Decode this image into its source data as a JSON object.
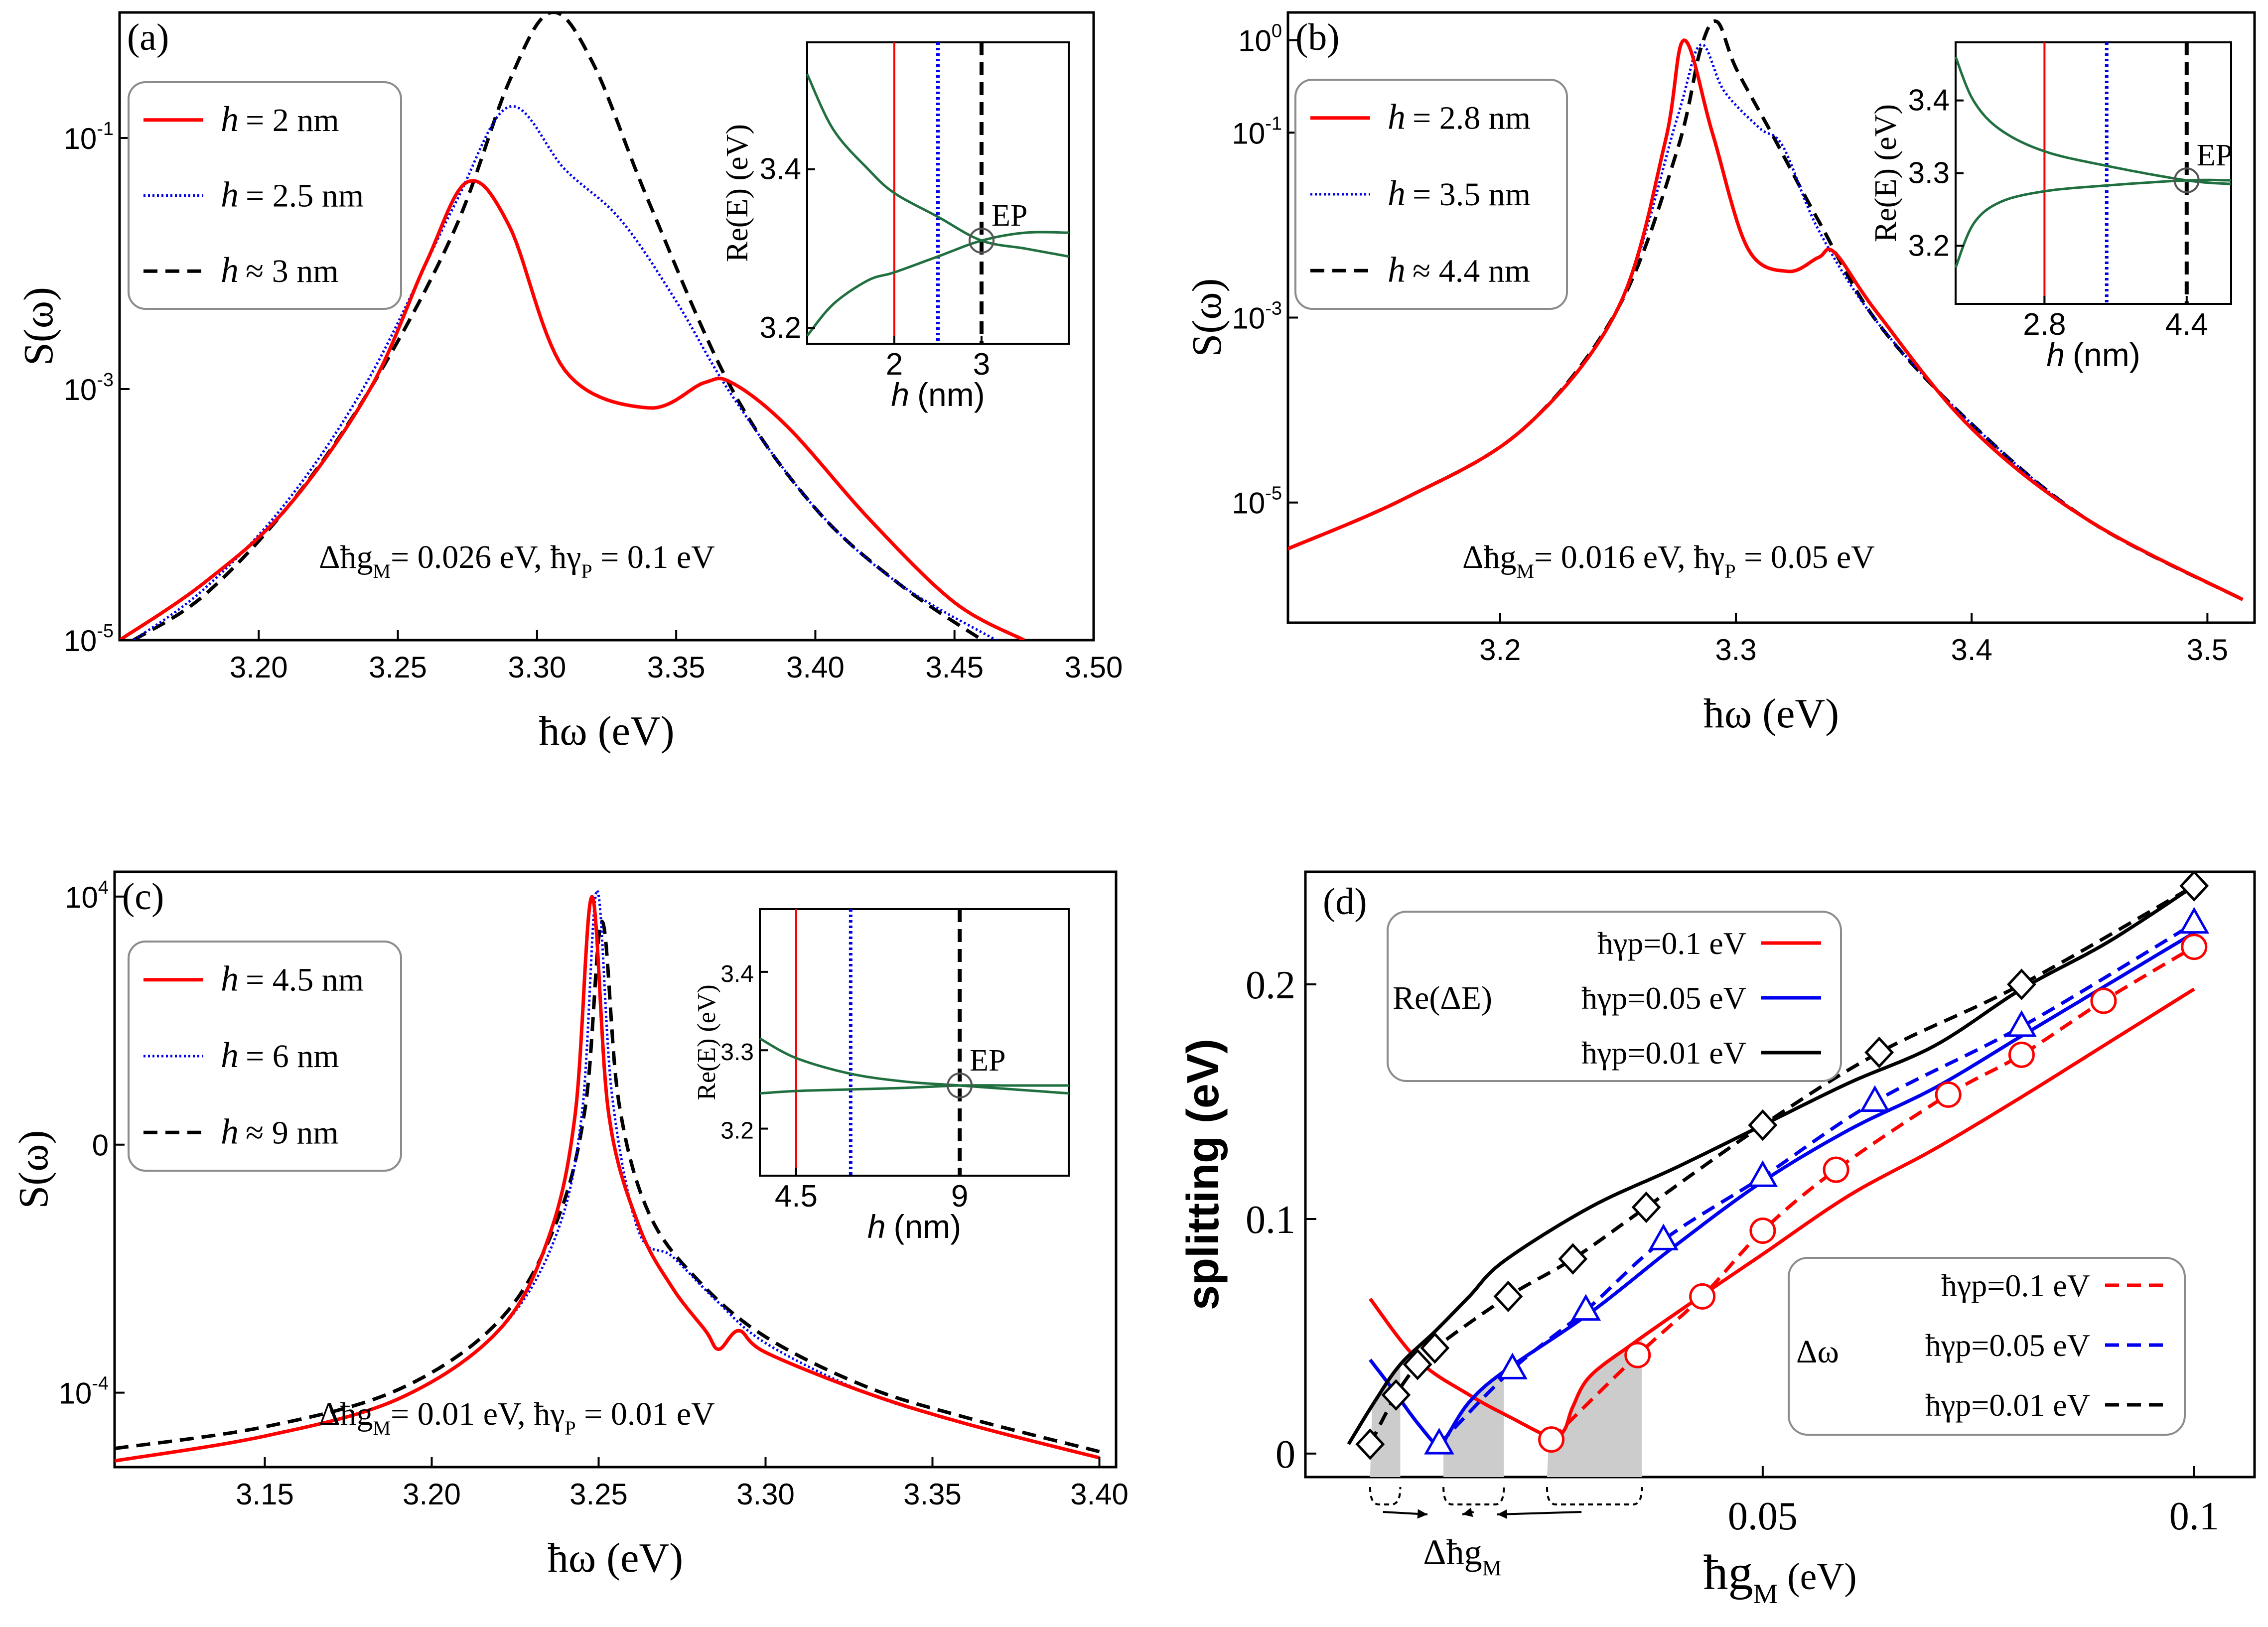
{
  "colors": {
    "red": "#ff0000",
    "blue": "#0000ee",
    "black": "#000000",
    "green": "#1f6f3f",
    "shade": "#cccccc"
  },
  "chart_data": [
    {
      "type": "line",
      "panel": "(a)",
      "ylabel": "S(ω)",
      "xlabel": "ħω (eV)",
      "yscale": "log",
      "xlim": [
        3.15,
        3.5
      ],
      "ylim_log10": [
        -5,
        0.0
      ],
      "xticks": [
        "3.20",
        "3.25",
        "3.30",
        "3.35",
        "3.40",
        "3.45",
        "3.50"
      ],
      "yticks": [
        {
          "base": "10",
          "exp": "-1"
        },
        {
          "base": "10",
          "exp": "-3"
        },
        {
          "base": "10",
          "exp": "-5"
        }
      ],
      "annotation": {
        "a": "Δħg",
        "a_sub": "M",
        "b": "= 0.026 eV,  ħγ",
        "b_sub": "P",
        "c": " = 0.1 eV"
      },
      "legend": [
        {
          "name": "h",
          "rel": "= 2 nm",
          "style": "solid",
          "color": "#ff0000"
        },
        {
          "name": "h",
          "rel": "= 2.5 nm",
          "style": "dotted",
          "color": "#0000ee"
        },
        {
          "name": "h",
          "rel": "≈ 3 nm",
          "style": "dashed",
          "color": "#000000"
        }
      ],
      "series": [
        {
          "name": "h = 2 nm",
          "x": [
            3.15,
            3.18,
            3.21,
            3.24,
            3.26,
            3.275,
            3.29,
            3.31,
            3.34,
            3.36,
            3.37,
            3.39,
            3.42,
            3.45,
            3.475
          ],
          "log10y": [
            -5.0,
            -4.55,
            -3.95,
            -3.0,
            -2.0,
            -1.35,
            -1.7,
            -2.85,
            -3.15,
            -2.95,
            -2.95,
            -3.3,
            -4.05,
            -4.7,
            -5.0
          ]
        },
        {
          "name": "h = 2.5 nm",
          "x": [
            3.155,
            3.18,
            3.21,
            3.24,
            3.27,
            3.29,
            3.31,
            3.33,
            3.35,
            3.37,
            3.4,
            3.43,
            3.465
          ],
          "log10y": [
            -5.0,
            -4.6,
            -3.9,
            -2.9,
            -1.55,
            -0.75,
            -1.25,
            -1.65,
            -2.3,
            -3.05,
            -3.95,
            -4.55,
            -5.0
          ]
        },
        {
          "name": "h ≈ 3 nm",
          "x": [
            3.155,
            3.18,
            3.21,
            3.24,
            3.27,
            3.29,
            3.305,
            3.32,
            3.34,
            3.37,
            3.4,
            3.43,
            3.46
          ],
          "log10y": [
            -5.0,
            -4.65,
            -3.95,
            -3.0,
            -1.75,
            -0.55,
            0.0,
            -0.4,
            -1.5,
            -3.0,
            -3.95,
            -4.55,
            -5.0
          ]
        }
      ],
      "inset": {
        "xlabel_name": "h",
        "xlabel_unit": "(nm)",
        "ylabel": "Re(E) (eV)",
        "xlim": [
          1.0,
          4.0
        ],
        "ylim": [
          3.18,
          3.56
        ],
        "xticks": [
          "2",
          "3"
        ],
        "yticks": [
          "3.2",
          "3.4"
        ],
        "ep_label": "EP",
        "ep": [
          3.0,
          3.31
        ],
        "vlines": [
          2.0,
          2.5,
          3.0
        ],
        "branches": [
          {
            "x": [
              1.0,
              1.3,
              1.7,
              2.0,
              2.5,
              3.0,
              3.5,
              4.0
            ],
            "y": [
              3.52,
              3.45,
              3.4,
              3.37,
              3.34,
              3.31,
              3.3,
              3.29
            ]
          },
          {
            "x": [
              1.0,
              1.3,
              1.7,
              2.0,
              2.5,
              3.0,
              3.5,
              4.0
            ],
            "y": [
              3.19,
              3.23,
              3.26,
              3.27,
              3.29,
              3.31,
              3.32,
              3.32
            ]
          }
        ]
      }
    },
    {
      "type": "line",
      "panel": "(b)",
      "ylabel": "S(ω)",
      "xlabel": "ħω (eV)",
      "yscale": "log",
      "xlim": [
        3.11,
        3.52
      ],
      "ylim_log10": [
        -6.3,
        0.3
      ],
      "xticks": [
        "3.2",
        "3.3",
        "3.4",
        "3.5"
      ],
      "yticks": [
        {
          "base": "10",
          "exp": "0"
        },
        {
          "base": "10",
          "exp": "-1"
        },
        {
          "base": "10",
          "exp": "-3"
        },
        {
          "base": "10",
          "exp": "-5"
        }
      ],
      "annotation": {
        "a": "Δħg",
        "a_sub": "M",
        "b": "= 0.016 eV,  ħγ",
        "b_sub": "P",
        "c": " = 0.05 eV"
      },
      "legend": [
        {
          "name": "h",
          "rel": "= 2.8 nm",
          "style": "solid",
          "color": "#ff0000"
        },
        {
          "name": "h",
          "rel": "= 3.5 nm",
          "style": "dotted",
          "color": "#0000ee"
        },
        {
          "name": "h",
          "rel": "≈ 4.4 nm",
          "style": "dashed",
          "color": "#000000"
        }
      ],
      "series": [
        {
          "name": "h = 2.8 nm",
          "x": [
            3.11,
            3.16,
            3.21,
            3.25,
            3.27,
            3.278,
            3.29,
            3.305,
            3.322,
            3.335,
            3.342,
            3.36,
            3.4,
            3.45,
            3.515
          ],
          "log10y": [
            -5.5,
            -4.95,
            -4.2,
            -2.9,
            -1.1,
            0.0,
            -1.0,
            -2.25,
            -2.5,
            -2.35,
            -2.3,
            -2.95,
            -4.2,
            -5.2,
            -6.05
          ]
        },
        {
          "name": "h = 3.5 nm",
          "x": [
            3.11,
            3.16,
            3.21,
            3.25,
            3.275,
            3.285,
            3.295,
            3.31,
            3.32,
            3.335,
            3.36,
            3.4,
            3.45,
            3.515
          ],
          "log10y": [
            -5.5,
            -4.95,
            -4.2,
            -2.9,
            -0.85,
            -0.05,
            -0.55,
            -0.95,
            -1.15,
            -2.05,
            -3.05,
            -4.15,
            -5.2,
            -6.05
          ]
        },
        {
          "name": "h ≈ 4.4 nm",
          "x": [
            3.11,
            3.16,
            3.21,
            3.25,
            3.275,
            3.285,
            3.292,
            3.3,
            3.315,
            3.335,
            3.36,
            3.4,
            3.45,
            3.515
          ],
          "log10y": [
            -5.5,
            -4.95,
            -4.2,
            -2.9,
            -1.2,
            -0.1,
            0.2,
            -0.3,
            -1.0,
            -1.95,
            -3.05,
            -4.15,
            -5.2,
            -6.05
          ]
        }
      ],
      "inset": {
        "xlabel_name": "h",
        "xlabel_unit": "(nm)",
        "ylabel": "Re(E) (eV)",
        "xlim": [
          1.8,
          4.9
        ],
        "ylim": [
          3.12,
          3.48
        ],
        "xticks": [
          "2.8",
          "4.4"
        ],
        "yticks": [
          "3.2",
          "3.3",
          "3.4"
        ],
        "ep_label": "EP",
        "ep": [
          4.4,
          3.29
        ],
        "vlines": [
          2.8,
          3.5,
          4.4
        ],
        "branches": [
          {
            "x": [
              1.8,
              2.0,
              2.3,
              2.8,
              3.5,
              4.4,
              4.9
            ],
            "y": [
              3.46,
              3.4,
              3.36,
              3.33,
              3.31,
              3.29,
              3.285
            ]
          },
          {
            "x": [
              1.8,
              2.0,
              2.3,
              2.8,
              3.5,
              4.4,
              4.9
            ],
            "y": [
              3.17,
              3.23,
              3.26,
              3.275,
              3.283,
              3.29,
              3.29
            ]
          }
        ]
      }
    },
    {
      "type": "line",
      "panel": "(c)",
      "ylabel": "S(ω)",
      "xlabel": "ħω (eV)",
      "yscale": "log",
      "xlim": [
        3.105,
        3.405
      ],
      "ylim_log10": [
        -5.2,
        4.4
      ],
      "xticks": [
        "3.15",
        "3.20",
        "3.25",
        "3.30",
        "3.35",
        "3.40"
      ],
      "yticks": [
        {
          "base": "10",
          "exp": "4"
        },
        {
          "base": "0",
          "exp": ""
        },
        {
          "base": "10",
          "exp": "-4"
        }
      ],
      "annotation": {
        "a": "Δħg",
        "a_sub": "M",
        "b": "= 0.01 eV,  ħγ",
        "b_sub": "P",
        "c": " = 0.01 eV"
      },
      "legend": [
        {
          "name": "h",
          "rel": "= 4.5 nm",
          "style": "solid",
          "color": "#ff0000"
        },
        {
          "name": "h",
          "rel": "= 6 nm",
          "style": "dotted",
          "color": "#0000ee"
        },
        {
          "name": "h",
          "rel": "≈ 9 nm",
          "style": "dashed",
          "color": "#000000"
        }
      ],
      "series": [
        {
          "name": "h = 4.5 nm",
          "x": [
            3.105,
            3.15,
            3.19,
            3.22,
            3.235,
            3.243,
            3.248,
            3.253,
            3.262,
            3.272,
            3.282,
            3.286,
            3.292,
            3.3,
            3.33,
            3.36,
            3.4
          ],
          "log10y": [
            -5.1,
            -4.7,
            -4.1,
            -3.0,
            -1.5,
            0.5,
            4.0,
            0.5,
            -1.3,
            -2.3,
            -3.0,
            -3.3,
            -3.0,
            -3.35,
            -4.0,
            -4.5,
            -5.05
          ]
        },
        {
          "name": "h = 6 nm",
          "x": [
            3.105,
            3.15,
            3.19,
            3.22,
            3.237,
            3.245,
            3.2495,
            3.254,
            3.262,
            3.272,
            3.285,
            3.3,
            3.33,
            3.36,
            3.4
          ],
          "log10y": [
            -5.1,
            -4.7,
            -4.1,
            -3.0,
            -1.5,
            0.5,
            4.1,
            0.8,
            -1.4,
            -1.8,
            -2.5,
            -3.2,
            -4.0,
            -4.5,
            -5.05
          ]
        },
        {
          "name": "h ≈ 9 nm",
          "x": [
            3.105,
            3.15,
            3.19,
            3.22,
            3.237,
            3.246,
            3.251,
            3.256,
            3.265,
            3.28,
            3.3,
            3.33,
            3.36,
            3.4
          ],
          "log10y": [
            -4.9,
            -4.55,
            -3.95,
            -2.85,
            -1.3,
            0.6,
            3.6,
            0.7,
            -1.1,
            -2.2,
            -3.1,
            -3.9,
            -4.4,
            -4.95
          ]
        }
      ],
      "inset": {
        "xlabel_name": "h",
        "xlabel_unit": "(nm)",
        "ylabel": "Re(E) (eV)",
        "xlim": [
          3.5,
          12.0
        ],
        "ylim": [
          3.14,
          3.48
        ],
        "xticks": [
          "4.5",
          "9"
        ],
        "yticks": [
          "3.2",
          "3.3",
          "3.4"
        ],
        "ep_label": "EP",
        "ep": [
          9.0,
          3.255
        ],
        "vlines": [
          4.5,
          6.0,
          9.0
        ],
        "branches": [
          {
            "x": [
              3.5,
              4.5,
              6.0,
              7.5,
              9.0,
              10.5,
              12.0
            ],
            "y": [
              3.315,
              3.29,
              3.27,
              3.26,
              3.255,
              3.25,
              3.245
            ]
          },
          {
            "x": [
              3.5,
              4.5,
              6.0,
              7.5,
              9.0,
              10.5,
              12.0
            ],
            "y": [
              3.245,
              3.248,
              3.25,
              3.252,
              3.255,
              3.255,
              3.255
            ]
          }
        ]
      }
    },
    {
      "type": "line",
      "panel": "(d)",
      "ylabel": "splitting (eV)",
      "xlabel_main": "ħg",
      "xlabel_sub": "M",
      "xlabel_unit": " (eV)",
      "xlim": [
        -0.003,
        0.107
      ],
      "ylim": [
        -0.01,
        0.248
      ],
      "xticks": [
        {
          "v": 0.05,
          "label": "0.05"
        },
        {
          "v": 0.1,
          "label": "0.1"
        }
      ],
      "yticks": [
        {
          "v": 0.0,
          "label": "0"
        },
        {
          "v": 0.1,
          "label": "0.1"
        },
        {
          "v": 0.2,
          "label": "0.2"
        }
      ],
      "legend_re": {
        "group": "Re(ΔE)",
        "items": [
          "ħγp=0.1 eV",
          "ħγp=0.05 eV",
          "ħγp=0.01 eV"
        ]
      },
      "legend_dw": {
        "group": "Δω",
        "items": [
          "ħγp=0.1 eV",
          "ħγp=0.05 eV",
          "ħγp=0.01 eV"
        ]
      },
      "delta_label": {
        "main": "Δħg",
        "sub": "M"
      },
      "shaded_intervals": [
        [
          0.0045,
          0.008
        ],
        [
          0.013,
          0.02
        ],
        [
          0.025,
          0.036
        ]
      ],
      "series": [
        {
          "name": "Re(ΔE) ħγp=0.1 eV",
          "style": "solid",
          "color": "#ff0000",
          "x": [
            0.0045,
            0.01,
            0.016,
            0.021,
            0.0255,
            0.027,
            0.028,
            0.03,
            0.035,
            0.042,
            0.05,
            0.06,
            0.07,
            0.08,
            0.09,
            0.1
          ],
          "y": [
            0.066,
            0.04,
            0.025,
            0.015,
            0.007,
            0.01,
            0.02,
            0.033,
            0.047,
            0.065,
            0.085,
            0.11,
            0.13,
            0.152,
            0.175,
            0.198
          ]
        },
        {
          "name": "Re(ΔE) ħγp=0.05 eV",
          "style": "solid",
          "color": "#0000ee",
          "x": [
            0.0045,
            0.007,
            0.01,
            0.0125,
            0.0135,
            0.016,
            0.02,
            0.03,
            0.04,
            0.05,
            0.06,
            0.07,
            0.08,
            0.09,
            0.1
          ],
          "y": [
            0.04,
            0.028,
            0.013,
            0.003,
            0.008,
            0.022,
            0.035,
            0.06,
            0.089,
            0.116,
            0.138,
            0.156,
            0.178,
            0.2,
            0.222
          ]
        },
        {
          "name": "Re(ΔE) ħγp=0.01 eV",
          "style": "solid",
          "color": "#000000",
          "x": [
            0.002,
            0.005,
            0.008,
            0.012,
            0.016,
            0.02,
            0.03,
            0.04,
            0.05,
            0.06,
            0.07,
            0.08,
            0.09,
            0.1
          ],
          "y": [
            0.004,
            0.022,
            0.038,
            0.052,
            0.067,
            0.082,
            0.105,
            0.122,
            0.14,
            0.158,
            0.174,
            0.198,
            0.218,
            0.242
          ]
        },
        {
          "name": "Δω ħγp=0.1 eV",
          "style": "dashed",
          "color": "#ff0000",
          "markers": "circle",
          "x": [
            0.0255,
            0.0355,
            0.043,
            0.05,
            0.0585,
            0.0715,
            0.08,
            0.0895,
            0.1
          ],
          "y": [
            0.006,
            0.042,
            0.067,
            0.095,
            0.121,
            0.153,
            0.17,
            0.193,
            0.216
          ]
        },
        {
          "name": "Δω ħγp=0.05 eV",
          "style": "dashed",
          "color": "#0000ee",
          "markers": "triangle",
          "x": [
            0.0125,
            0.021,
            0.0295,
            0.0385,
            0.05,
            0.063,
            0.08,
            0.1
          ],
          "y": [
            0.004,
            0.036,
            0.061,
            0.091,
            0.118,
            0.15,
            0.182,
            0.226
          ]
        },
        {
          "name": "Δω ħγp=0.01 eV",
          "style": "dashed",
          "color": "#000000",
          "markers": "diamond",
          "x": [
            0.0045,
            0.0075,
            0.01,
            0.012,
            0.0205,
            0.028,
            0.0365,
            0.05,
            0.0635,
            0.08,
            0.1
          ],
          "y": [
            0.004,
            0.025,
            0.038,
            0.045,
            0.067,
            0.083,
            0.105,
            0.14,
            0.171,
            0.2,
            0.242
          ]
        }
      ]
    }
  ]
}
